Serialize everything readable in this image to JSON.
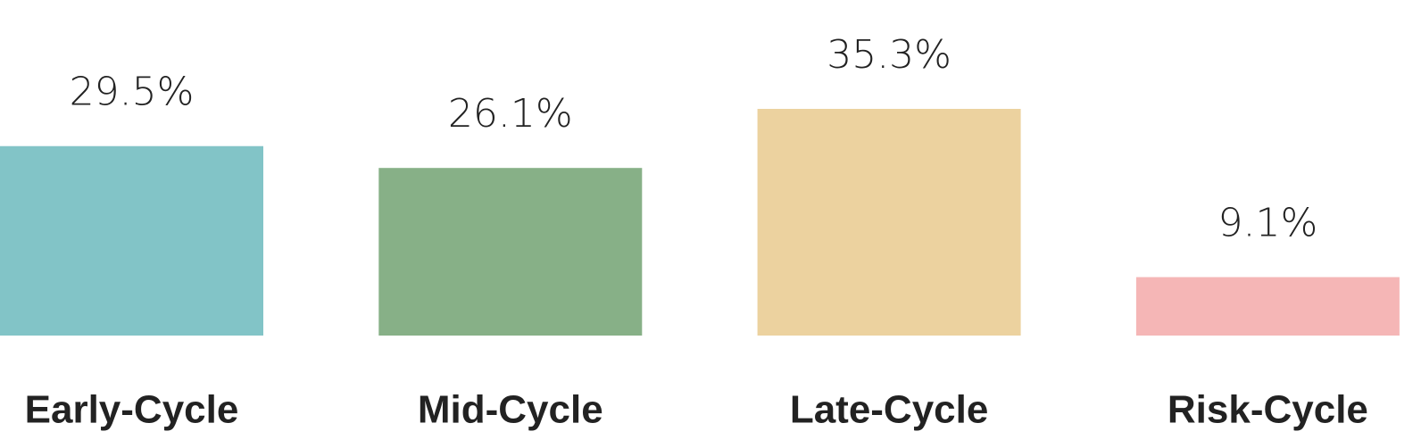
{
  "chart_data": {
    "type": "bar",
    "categories": [
      "Early-Cycle",
      "Mid-Cycle",
      "Late-Cycle",
      "Risk-Cycle"
    ],
    "values": [
      29.5,
      26.1,
      35.3,
      9.1
    ],
    "value_labels": [
      "29.5%",
      "26.1%",
      "35.3%",
      "9.1%"
    ],
    "colors": [
      "#82c4c7",
      "#87b087",
      "#ecd29f",
      "#f5b6b6"
    ]
  }
}
